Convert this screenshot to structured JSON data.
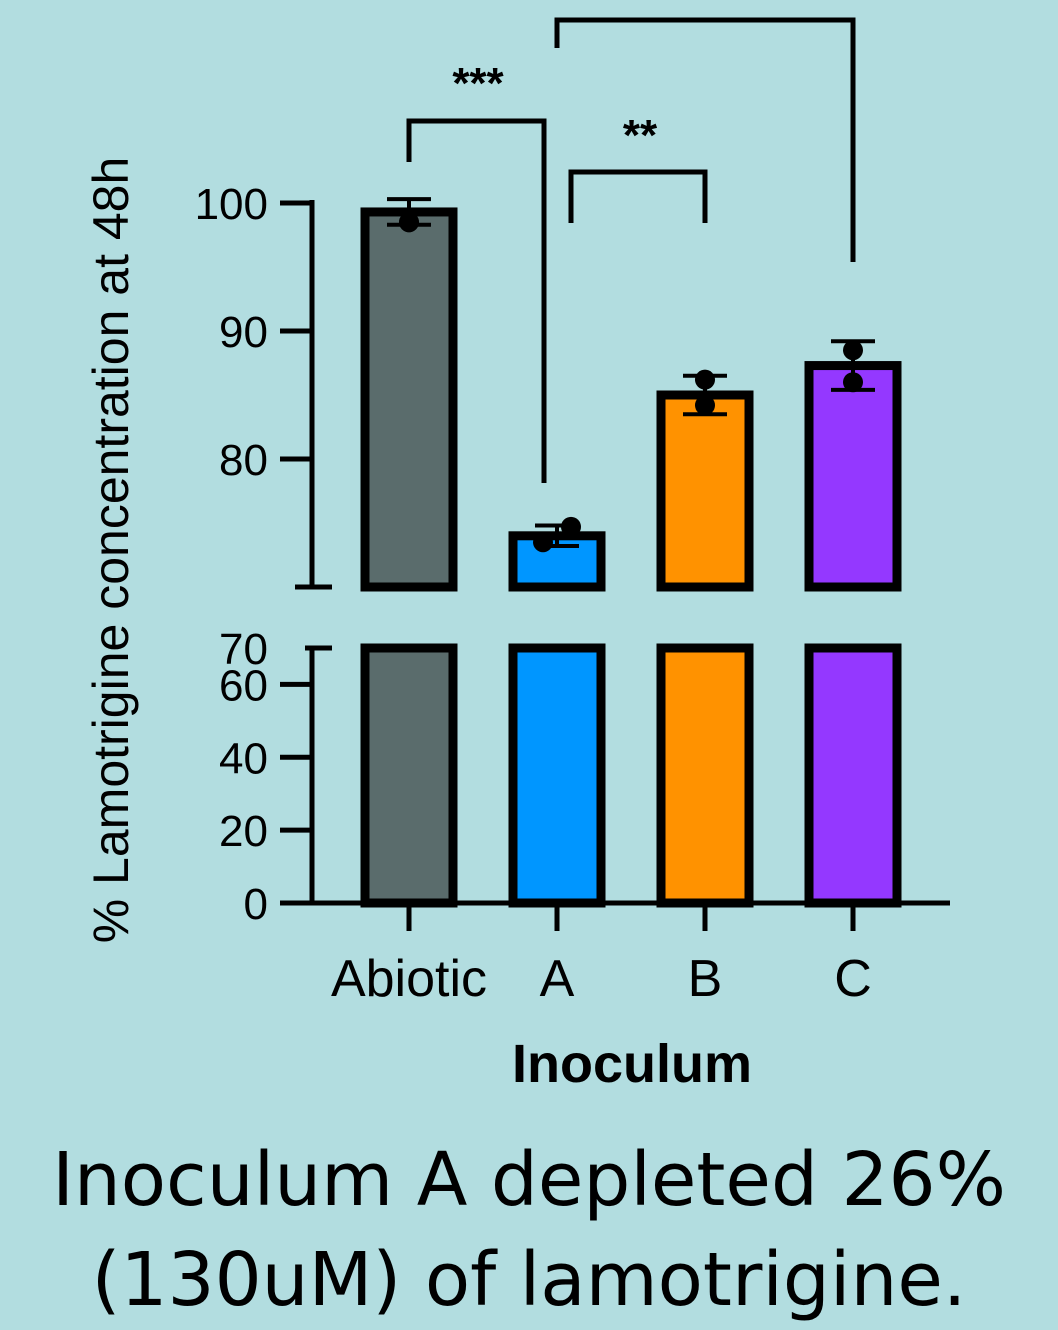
{
  "colors": {
    "background": "#b2dde0",
    "axis": "#000000",
    "abiotic": "#5a6c6c",
    "A": "#0096ff",
    "B": "#ff9200",
    "C": "#9438ff"
  },
  "chart_data": {
    "type": "bar",
    "title": "",
    "xlabel": "Inoculum",
    "ylabel": "% Lamotrigine concentration at 48h",
    "categories": [
      "Abiotic",
      "A",
      "B",
      "C"
    ],
    "values": [
      99.3,
      74.0,
      85.0,
      87.3
    ],
    "error": [
      1.0,
      0.8,
      1.5,
      1.9
    ],
    "points": [
      [
        98.5,
        98.5
      ],
      [
        73.5,
        74.7
      ],
      [
        86.2,
        84.2
      ],
      [
        88.5,
        86.0
      ]
    ],
    "y_axis_broken": true,
    "lower_segment": {
      "range": [
        0,
        70
      ],
      "ticks": [
        0,
        20,
        40,
        60
      ]
    },
    "upper_segment": {
      "range": [
        70,
        100
      ],
      "ticks": [
        70,
        80,
        90,
        100
      ]
    },
    "yticklabels": [
      "0",
      "20",
      "40",
      "60",
      "70",
      "80",
      "90",
      "100"
    ],
    "grid": false,
    "legend": "none",
    "significance": [
      {
        "from": "Abiotic",
        "to": "A",
        "label": "***"
      },
      {
        "from": "A",
        "to": "B",
        "label": "**"
      },
      {
        "from": "A",
        "to": "C",
        "label": ""
      }
    ]
  },
  "caption": {
    "line1": "Inoculum A depleted 26%",
    "line2": "(130uM) of lamotrigine."
  }
}
